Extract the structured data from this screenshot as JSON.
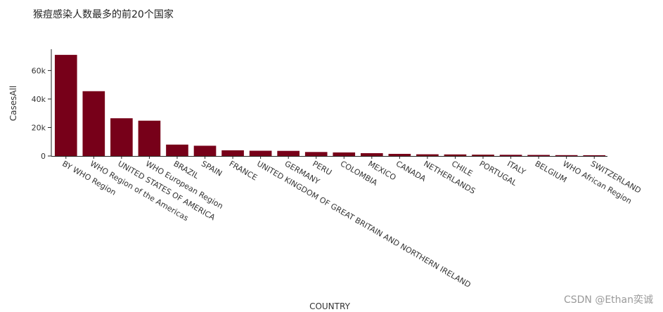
{
  "chart_data": {
    "type": "bar",
    "title": "猴痘感染人数最多的前20个国家",
    "xlabel": "COUNTRY",
    "ylabel": "CasesAll",
    "categories": [
      "BY WHO Region",
      "WHO Region of the Americas",
      "UNITED STATES OF AMERICA",
      "WHO European Region",
      "BRAZIL",
      "SPAIN",
      "FRANCE",
      "UNITED KINGDOM OF GREAT BRITAIN AND NORTHERN IRELAND",
      "GERMANY",
      "PERU",
      "COLOMBIA",
      "MEXICO",
      "CANADA",
      "NETHERLANDS",
      "CHILE",
      "PORTUGAL",
      "ITALY",
      "BELGIUM",
      "WHO African Region",
      "SWITZERLAND"
    ],
    "values": [
      71000,
      45500,
      26500,
      24800,
      8000,
      7200,
      4000,
      3700,
      3600,
      2800,
      2500,
      2000,
      1500,
      1200,
      1100,
      950,
      850,
      750,
      600,
      550
    ],
    "yticks": [
      0,
      20000,
      40000,
      60000
    ],
    "ytick_labels": [
      "0",
      "20k",
      "40k",
      "60k"
    ],
    "ylim": [
      0,
      74000
    ],
    "grid": false,
    "bar_color": "#770019"
  },
  "watermark": "CSDN @Ethan奕诚"
}
